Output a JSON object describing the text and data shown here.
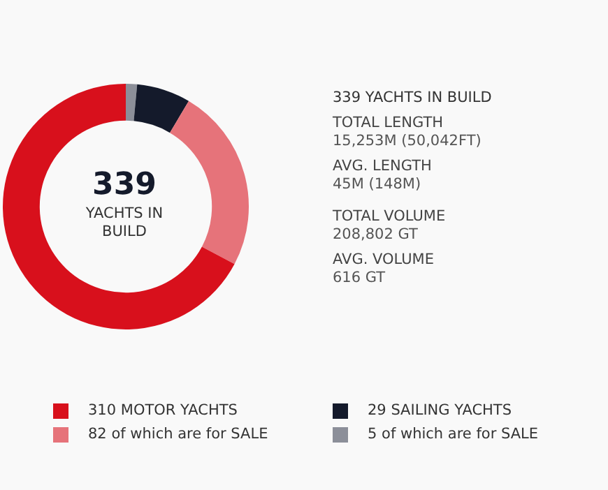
{
  "chart_data": {
    "type": "donut",
    "categories": [
      "5 of which are for SALE",
      "29 SAILING YACHTS",
      "82 of which are for SALE",
      "310 MOTOR YACHTS"
    ],
    "values": [
      5,
      24,
      82,
      228
    ],
    "colors": [
      "#8c8f99",
      "#141a2b",
      "#e6737a",
      "#d8101c"
    ],
    "legend": "bottom",
    "annotations": [
      "339",
      "YACHTS IN BUILD",
      "339 YACHTS IN BUILD",
      "TOTAL LENGTH",
      "15,253M (50,042FT)",
      "AVG. LENGTH",
      "45M (148M)",
      "TOTAL VOLUME",
      "208,802 GT",
      "AVG. VOLUME",
      "616 GT"
    ]
  }
}
